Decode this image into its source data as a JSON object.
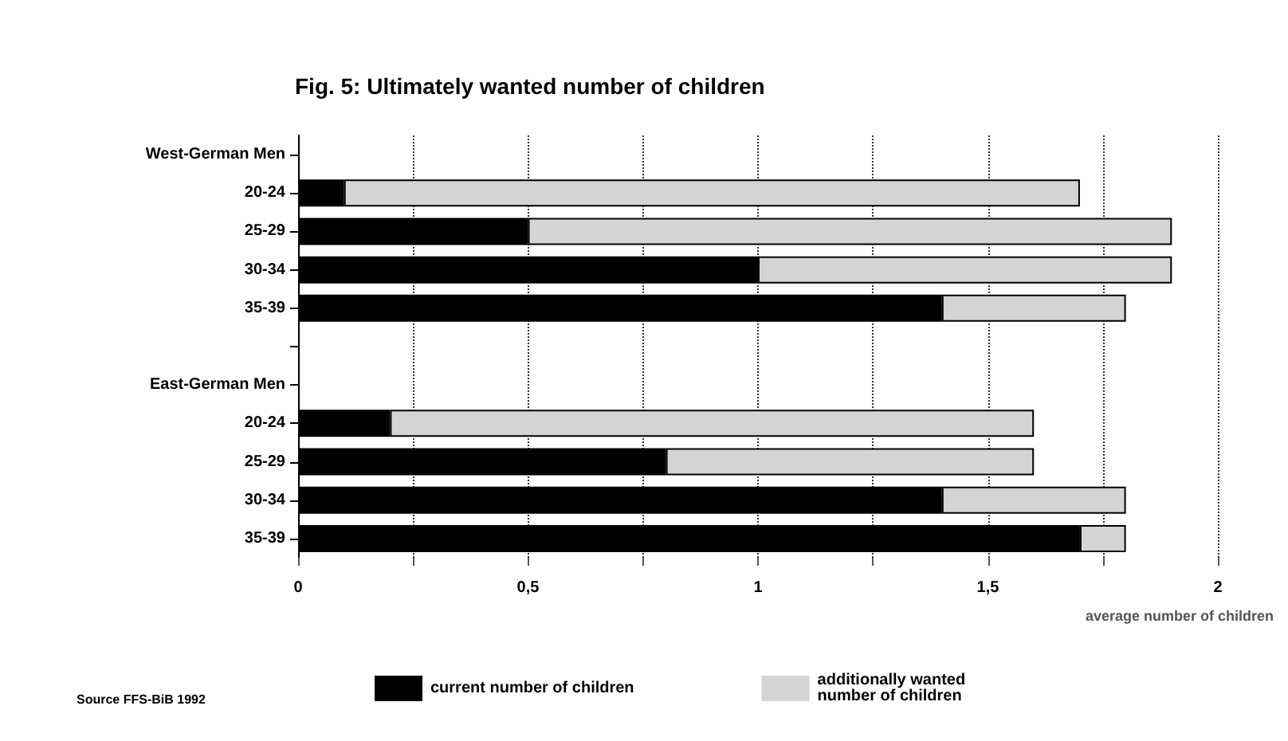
{
  "chart_data": {
    "type": "bar",
    "orientation": "horizontal",
    "stacked": true,
    "title": "Fig. 5: Ultimately wanted number of children",
    "xlabel": "average number of children",
    "categories": [
      "West-German Men",
      "20-24",
      "25-29",
      "30-34",
      "35-39",
      null,
      "East-German Men",
      "20-24",
      "25-29",
      "30-34",
      "35-39"
    ],
    "series": [
      {
        "name": "current number of children",
        "color": "#000000",
        "values": [
          null,
          0.1,
          0.5,
          1.0,
          1.4,
          null,
          null,
          0.2,
          0.8,
          1.4,
          1.7
        ]
      },
      {
        "name": "additionally wanted number of children",
        "color": "#d4d4d4",
        "values": [
          null,
          1.6,
          1.4,
          0.9,
          0.4,
          null,
          null,
          1.4,
          0.8,
          0.4,
          0.1
        ]
      }
    ],
    "xlim": [
      0,
      2
    ],
    "xticks": [
      0,
      {
        "value": 0.25,
        "label": null
      },
      {
        "value": 0.5,
        "label": "0,5"
      },
      {
        "value": 0.75,
        "label": null
      },
      1,
      {
        "value": 1.25,
        "label": null
      },
      {
        "value": 1.5,
        "label": "1,5"
      },
      {
        "value": 1.75,
        "label": null
      },
      2
    ],
    "grid": "x",
    "legend": "bottom",
    "annotations": [
      "Source FFS-BiB 1992"
    ]
  }
}
